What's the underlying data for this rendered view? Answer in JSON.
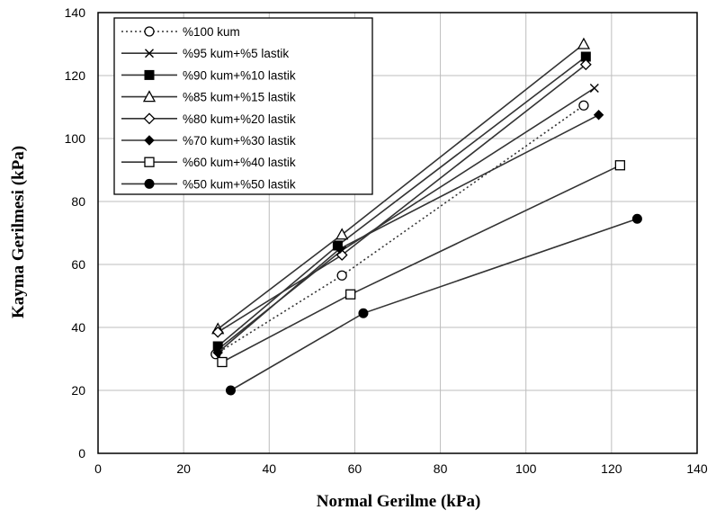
{
  "chart_data": {
    "type": "line",
    "title": "",
    "xlabel": "Normal Gerilme (kPa)",
    "ylabel": "Kayma Gerilmesi (kPa)",
    "xlim": [
      0,
      140
    ],
    "ylim": [
      0,
      140
    ],
    "xticks": [
      0,
      20,
      40,
      60,
      80,
      100,
      120,
      140
    ],
    "yticks": [
      0,
      20,
      40,
      60,
      80,
      100,
      120,
      140
    ],
    "grid": true,
    "legend_position": "top-left",
    "series": [
      {
        "name": "%100 kum",
        "marker": "circle-open",
        "dash": "dotted",
        "points": [
          [
            27.5,
            31.5
          ],
          [
            57,
            56.5
          ],
          [
            113.5,
            110.5
          ]
        ]
      },
      {
        "name": "%95 kum+%5 lastik",
        "marker": "x",
        "dash": "solid",
        "points": [
          [
            28,
            33
          ],
          [
            57,
            64.5
          ],
          [
            116,
            116
          ]
        ]
      },
      {
        "name": "%90 kum+%10 lastik",
        "marker": "square-filled",
        "dash": "solid",
        "points": [
          [
            28,
            34
          ],
          [
            56,
            66
          ],
          [
            114,
            126
          ]
        ]
      },
      {
        "name": "%85 kum+%15 lastik",
        "marker": "triangle-open",
        "dash": "solid",
        "points": [
          [
            28,
            39.5
          ],
          [
            57,
            69.5
          ],
          [
            113.5,
            130
          ]
        ]
      },
      {
        "name": "%80 kum+%20 lastik",
        "marker": "diamond-open",
        "dash": "solid",
        "points": [
          [
            28,
            38.5
          ],
          [
            57,
            63
          ],
          [
            114,
            123.5
          ]
        ]
      },
      {
        "name": "%70 kum+%30 lastik",
        "marker": "diamond-filled",
        "dash": "solid",
        "points": [
          [
            28,
            32
          ],
          [
            56.5,
            65
          ],
          [
            117,
            107.5
          ]
        ]
      },
      {
        "name": "%60 kum+%40 lastik",
        "marker": "square-open",
        "dash": "solid",
        "points": [
          [
            29,
            29
          ],
          [
            59,
            50.5
          ],
          [
            122,
            91.5
          ]
        ]
      },
      {
        "name": "%50 kum+%50 lastik",
        "marker": "circle-filled",
        "dash": "solid",
        "points": [
          [
            31,
            20
          ],
          [
            62,
            44.5
          ],
          [
            126,
            74.5
          ]
        ]
      }
    ]
  }
}
